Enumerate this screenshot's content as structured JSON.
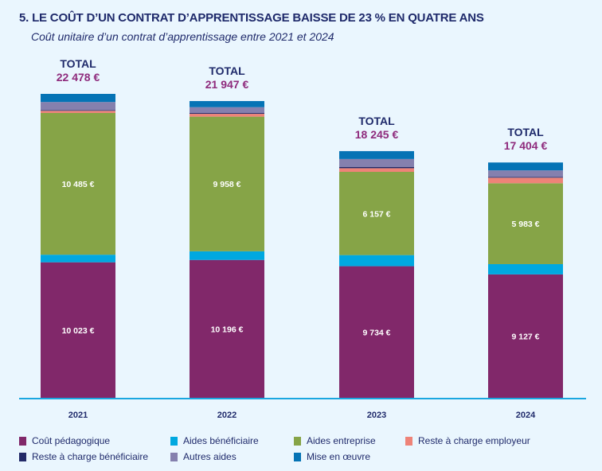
{
  "title": "5. LE COÛT D’UN CONTRAT D’APPRENTISSAGE BAISSE DE 23 % EN QUATRE ANS",
  "subtitle": "Coût unitaire d’un contrat d’apprentissage entre 2021 et 2024",
  "colors": {
    "background": "#eaf6fe",
    "title": "#1f2a6b",
    "total_value": "#8e2a7c",
    "baseline": "#1aa7e0"
  },
  "chart_data": {
    "type": "bar",
    "stacked": true,
    "title": "5. LE COÛT D’UN CONTRAT D’APPRENTISSAGE BAISSE DE 23 % EN QUATRE ANS",
    "subtitle": "Coût unitaire d’un contrat d’apprentissage entre 2021 et 2024",
    "xlabel": "",
    "ylabel": "",
    "unit": "€",
    "ylim": [
      0,
      22478
    ],
    "grid": false,
    "legend_position": "bottom",
    "categories": [
      "2021",
      "2022",
      "2023",
      "2024"
    ],
    "total_label": "TOTAL",
    "totals": [
      22478,
      21947,
      18245,
      17404
    ],
    "total_labels": [
      "22 478 €",
      "21 947 €",
      "18 245 €",
      "17 404 €"
    ],
    "series": [
      {
        "name": "Coût pédagogique",
        "color": "#81286a",
        "values": [
          10023,
          10196,
          9734,
          9127
        ],
        "labels": [
          "10 023 €",
          "10 196 €",
          "9 734 €",
          "9 127 €"
        ]
      },
      {
        "name": "Aides bénéficiaire",
        "color": "#00a8e0",
        "values": [
          560,
          640,
          820,
          760
        ],
        "estimated": true
      },
      {
        "name": "Aides entreprise",
        "color": "#86a447",
        "values": [
          10485,
          9958,
          6157,
          5983
        ],
        "labels": [
          "10 485 €",
          "9 958 €",
          "6 157 €",
          "5 983 €"
        ]
      },
      {
        "name": "Reste à charge employeur",
        "color": "#ee8378",
        "values": [
          160,
          210,
          270,
          410
        ],
        "estimated": true
      },
      {
        "name": "Reste à charge bénéficiaire",
        "color": "#232a68",
        "values": [
          50,
          60,
          100,
          60
        ],
        "estimated": true
      },
      {
        "name": "Autres aides",
        "color": "#8580ae",
        "values": [
          600,
          430,
          580,
          480
        ],
        "estimated": true
      },
      {
        "name": "Mise en œuvre",
        "color": "#0573b5",
        "values": [
          600,
          453,
          584,
          584
        ],
        "estimated": true
      }
    ]
  },
  "legend": [
    {
      "label": "Coût pédagogique",
      "color": "#81286a"
    },
    {
      "label": "Aides bénéficiaire",
      "color": "#00a8e0"
    },
    {
      "label": "Aides entreprise",
      "color": "#86a447"
    },
    {
      "label": "Reste à charge employeur",
      "color": "#ee8378"
    },
    {
      "label": "Reste à charge bénéficiaire",
      "color": "#232a68"
    },
    {
      "label": "Autres aides",
      "color": "#8580ae"
    },
    {
      "label": "Mise en œuvre",
      "color": "#0573b5"
    }
  ]
}
